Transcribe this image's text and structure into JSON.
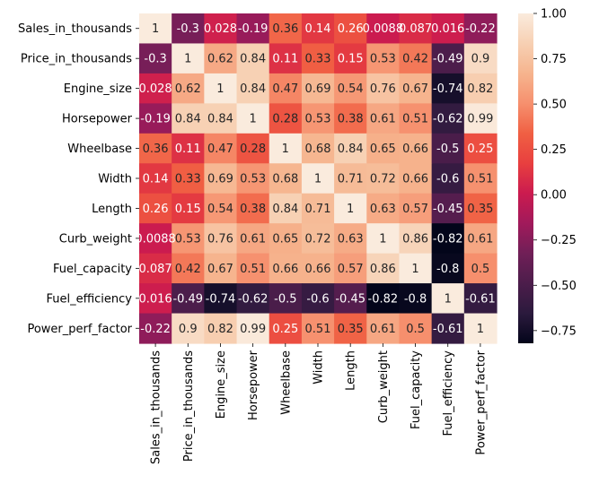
{
  "chart_data": {
    "type": "heatmap",
    "title": "",
    "xlabel": "",
    "ylabel": "",
    "variables": [
      "Sales_in_thousands",
      "Price_in_thousands",
      "Engine_size",
      "Horsepower",
      "Wheelbase",
      "Width",
      "Length",
      "Curb_weight",
      "Fuel_capacity",
      "Fuel_efficiency",
      "Power_perf_factor"
    ],
    "x_tick_labels": [
      "Sales_in_thousands",
      "Price_in_thousands",
      "Engine_size",
      "Horsepower",
      "Wheelbase",
      "Width",
      "Length",
      "Curb_weight",
      "Fuel_capacity",
      "Fuel_efficiency",
      "Power_perf_factor"
    ],
    "y_tick_labels": [
      "Sales_in_thousands",
      "Price_in_thousands",
      "Engine_size",
      "Horsepower",
      "Wheelbase",
      "Width",
      "Length",
      "Curb_weight",
      "Fuel_capacity",
      "Fuel_efficiency",
      "Power_perf_factor"
    ],
    "matrix": [
      [
        1,
        -0.3,
        0.028,
        -0.19,
        0.36,
        0.14,
        0.26,
        0.0088,
        0.087,
        0.016,
        -0.22
      ],
      [
        -0.3,
        1,
        0.62,
        0.84,
        0.11,
        0.33,
        0.15,
        0.53,
        0.42,
        -0.49,
        0.9
      ],
      [
        0.028,
        0.62,
        1,
        0.84,
        0.47,
        0.69,
        0.54,
        0.76,
        0.67,
        -0.74,
        0.82
      ],
      [
        -0.19,
        0.84,
        0.84,
        1,
        0.28,
        0.53,
        0.38,
        0.61,
        0.51,
        -0.62,
        0.99
      ],
      [
        0.36,
        0.11,
        0.47,
        0.28,
        1,
        0.68,
        0.84,
        0.65,
        0.66,
        -0.5,
        0.25
      ],
      [
        0.14,
        0.33,
        0.69,
        0.53,
        0.68,
        1,
        0.71,
        0.72,
        0.66,
        -0.6,
        0.51
      ],
      [
        0.26,
        0.15,
        0.54,
        0.38,
        0.84,
        0.71,
        1,
        0.63,
        0.57,
        -0.45,
        0.35
      ],
      [
        0.0088,
        0.53,
        0.76,
        0.61,
        0.65,
        0.72,
        0.63,
        1,
        0.86,
        -0.82,
        0.61
      ],
      [
        0.087,
        0.42,
        0.67,
        0.51,
        0.66,
        0.66,
        0.57,
        0.86,
        1,
        -0.8,
        0.5
      ],
      [
        0.016,
        -0.49,
        -0.74,
        -0.62,
        -0.5,
        -0.6,
        -0.45,
        -0.82,
        -0.8,
        1,
        -0.61
      ],
      [
        -0.22,
        0.9,
        0.82,
        0.99,
        0.25,
        0.51,
        0.35,
        0.61,
        0.5,
        -0.61,
        1
      ]
    ],
    "annotations": [
      [
        "1",
        "-0.3",
        "0.028",
        "-0.19",
        "0.36",
        "0.14",
        "0.26",
        "0.0088",
        "0.087",
        "0.016",
        "-0.22"
      ],
      [
        "-0.3",
        "1",
        "0.62",
        "0.84",
        "0.11",
        "0.33",
        "0.15",
        "0.53",
        "0.42",
        "-0.49",
        "0.9"
      ],
      [
        "0.028",
        "0.62",
        "1",
        "0.84",
        "0.47",
        "0.69",
        "0.54",
        "0.76",
        "0.67",
        "-0.74",
        "0.82"
      ],
      [
        "-0.19",
        "0.84",
        "0.84",
        "1",
        "0.28",
        "0.53",
        "0.38",
        "0.61",
        "0.51",
        "-0.62",
        "0.99"
      ],
      [
        "0.36",
        "0.11",
        "0.47",
        "0.28",
        "1",
        "0.68",
        "0.84",
        "0.65",
        "0.66",
        "-0.5",
        "0.25"
      ],
      [
        "0.14",
        "0.33",
        "0.69",
        "0.53",
        "0.68",
        "1",
        "0.71",
        "0.72",
        "0.66",
        "-0.6",
        "0.51"
      ],
      [
        "0.26",
        "0.15",
        "0.54",
        "0.38",
        "0.84",
        "0.71",
        "1",
        "0.63",
        "0.57",
        "-0.45",
        "0.35"
      ],
      [
        "0.0088",
        "0.53",
        "0.76",
        "0.61",
        "0.65",
        "0.72",
        "0.63",
        "1",
        "0.86",
        "-0.82",
        "0.61"
      ],
      [
        "0.087",
        "0.42",
        "0.67",
        "0.51",
        "0.66",
        "0.66",
        "0.57",
        "0.86",
        "1",
        "-0.8",
        "0.5"
      ],
      [
        "0.016",
        "-0.49",
        "-0.74",
        "-0.62",
        "-0.5",
        "-0.6",
        "-0.45",
        "-0.82",
        "-0.8",
        "1",
        "-0.61"
      ],
      [
        "-0.22",
        "0.9",
        "0.82",
        "0.99",
        "0.25",
        "0.51",
        "0.35",
        "0.61",
        "0.5",
        "-0.61",
        "1"
      ]
    ],
    "colormap": "rocket",
    "colormap_stops": [
      "#03051a",
      "#2b1a3d",
      "#4c1d4b",
      "#701f57",
      "#a11a5b",
      "#cb1b4f",
      "#e83f3f",
      "#f06043",
      "#f6906e",
      "#f6b48e",
      "#f7d0b3",
      "#faebdd"
    ],
    "vmin": -0.82,
    "vmax": 1.0,
    "colorbar": {
      "ticks": [
        1.0,
        0.75,
        0.5,
        0.25,
        0.0,
        -0.25,
        -0.5,
        -0.75
      ],
      "tick_labels": [
        "1.00",
        "0.75",
        "0.50",
        "0.25",
        "0.00",
        "−0.25",
        "−0.50",
        "−0.75"
      ]
    },
    "annotation_text_colors": {
      "light": "#ffffff",
      "dark": "#262626"
    },
    "grid": false,
    "legend": "colorbar-right"
  }
}
